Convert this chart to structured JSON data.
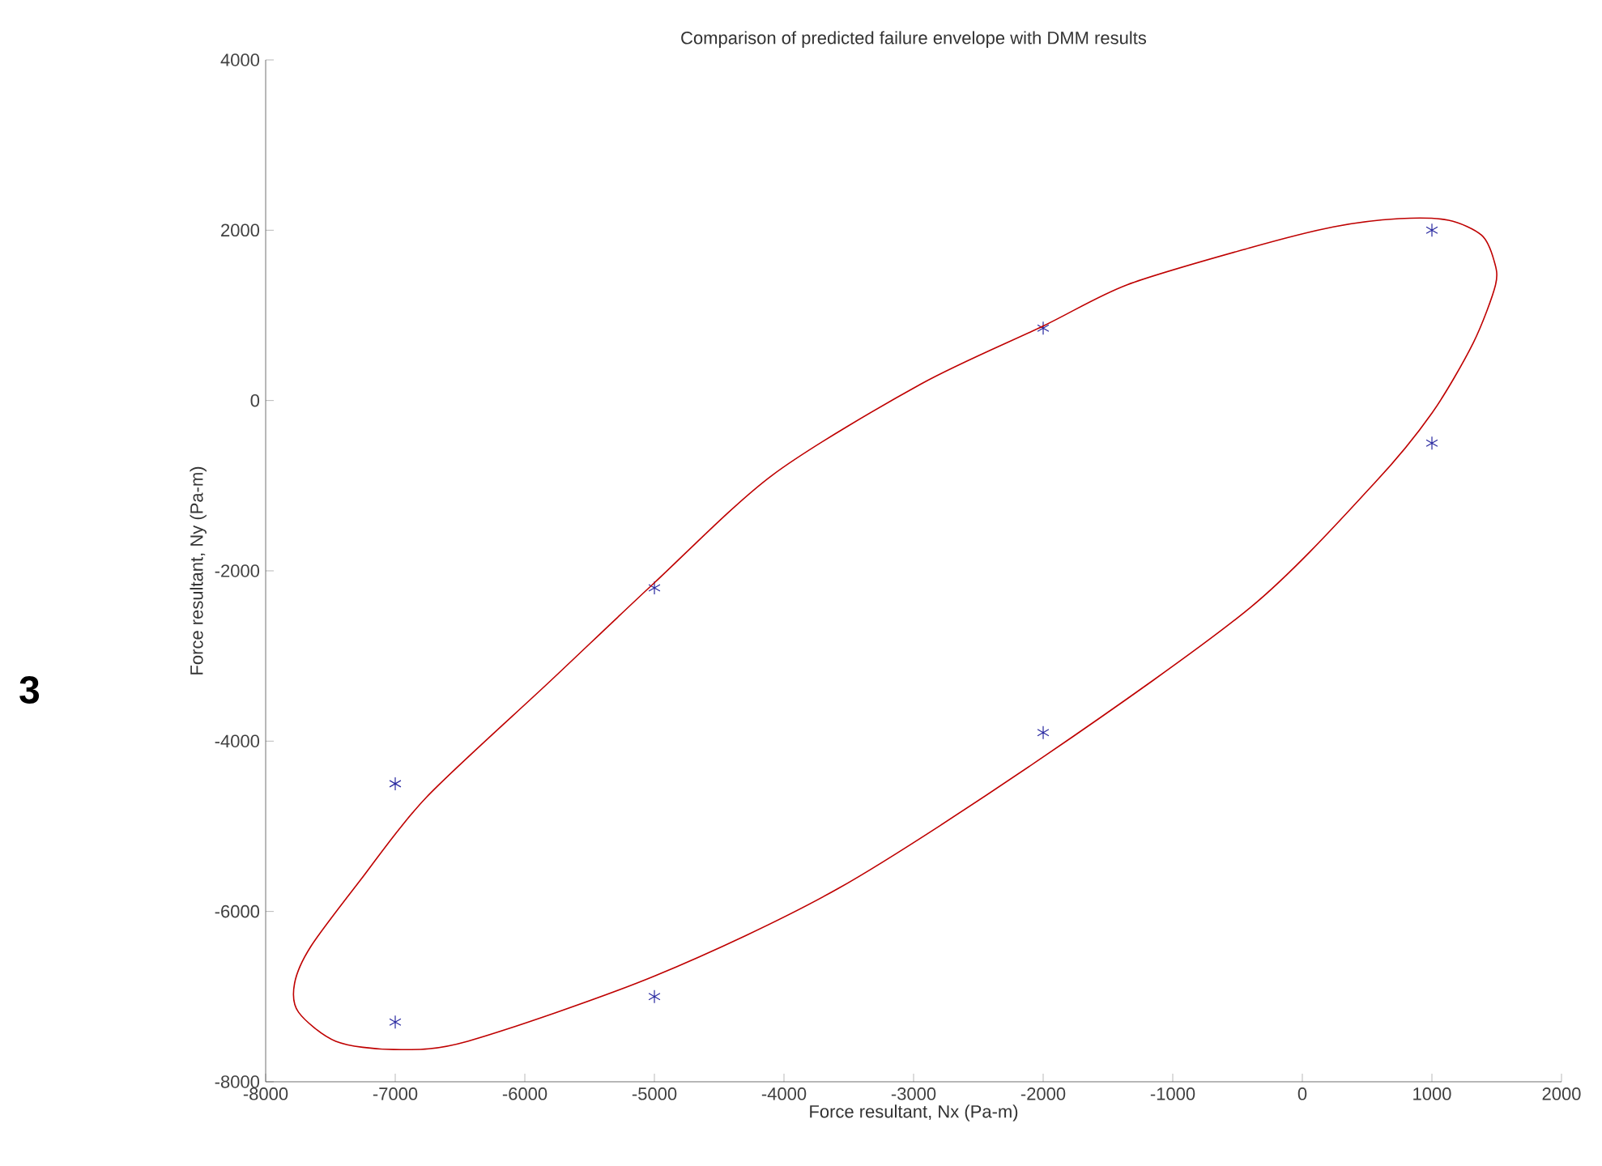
{
  "chart_data": {
    "type": "scatter",
    "title": "Comparison of predicted  failure envelope with DMM results",
    "xlabel": "Force resultant, Nx (Pa-m)",
    "ylabel": "Force  resultant, Ny (Pa-m)",
    "annotations": [
      "3"
    ],
    "xlim": [
      -8000,
      2000
    ],
    "ylim": [
      -8000,
      4000
    ],
    "xticks": [
      -8000,
      -7000,
      -6000,
      -5000,
      -4000,
      -3000,
      -2000,
      -1000,
      0,
      1000,
      2000
    ],
    "yticks": [
      -8000,
      -6000,
      -4000,
      -2000,
      0,
      2000,
      4000
    ],
    "grid": false,
    "series": [
      {
        "color": "#2828a0",
        "marker": "cross",
        "x": [
          -7000,
          -5000,
          -7000,
          -5000,
          -2000,
          -2000,
          1000,
          1000
        ],
        "values": [
          -7300,
          -7000,
          -4500,
          -2200,
          850,
          -3900,
          2000,
          -500
        ]
      }
    ]
  }
}
